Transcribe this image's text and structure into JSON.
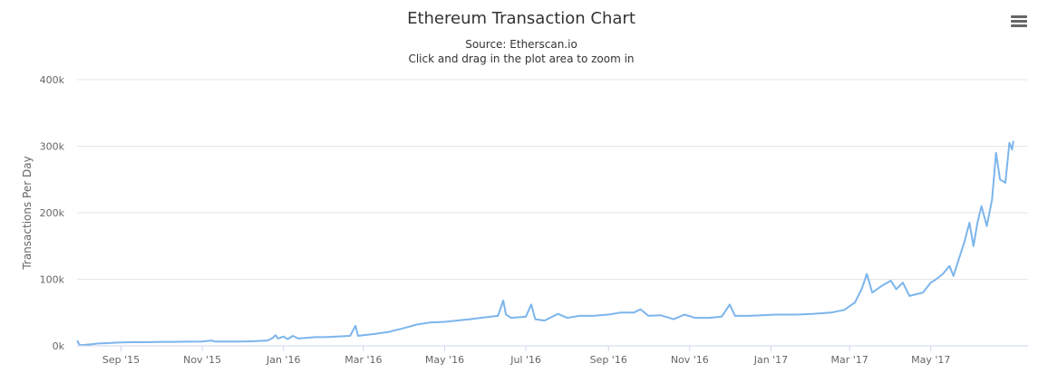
{
  "chart_data": {
    "type": "line",
    "title": "Ethereum Transaction Chart",
    "subtitle": "Source: Etherscan.io",
    "subtitle2": "Click and drag in the plot area to zoom in",
    "xlabel": "",
    "ylabel": "Transactions Per Day",
    "x_ticks": [
      "Sep '15",
      "Nov '15",
      "Jan '16",
      "Mar '16",
      "May '16",
      "Jul '16",
      "Sep '16",
      "Nov '16",
      "Jan '17",
      "Mar '17",
      "May '17"
    ],
    "y_ticks": [
      "0k",
      "100k",
      "200k",
      "300k",
      "400k"
    ],
    "xlim": [
      "2015-07-30",
      "2017-07-13"
    ],
    "ylim": [
      0,
      400000
    ],
    "grid": true,
    "legend": "none",
    "series": [
      {
        "color": "#7cb5ec",
        "points": [
          [
            "2015-07-30",
            8000
          ],
          [
            "2015-08-01",
            1000
          ],
          [
            "2015-08-05",
            1500
          ],
          [
            "2015-08-10",
            2500
          ],
          [
            "2015-08-15",
            3500
          ],
          [
            "2015-08-20",
            4000
          ],
          [
            "2015-08-25",
            4500
          ],
          [
            "2015-09-01",
            5000
          ],
          [
            "2015-09-10",
            5500
          ],
          [
            "2015-09-20",
            5500
          ],
          [
            "2015-10-01",
            6000
          ],
          [
            "2015-10-10",
            6000
          ],
          [
            "2015-10-20",
            6200
          ],
          [
            "2015-11-01",
            6500
          ],
          [
            "2015-11-08",
            8000
          ],
          [
            "2015-11-10",
            6500
          ],
          [
            "2015-11-20",
            6500
          ],
          [
            "2015-12-01",
            6500
          ],
          [
            "2015-12-10",
            7000
          ],
          [
            "2015-12-20",
            8000
          ],
          [
            "2015-12-24",
            12000
          ],
          [
            "2015-12-26",
            16000
          ],
          [
            "2015-12-28",
            11000
          ],
          [
            "2016-01-01",
            14000
          ],
          [
            "2016-01-04",
            10000
          ],
          [
            "2016-01-08",
            15000
          ],
          [
            "2016-01-12",
            11000
          ],
          [
            "2016-01-18",
            12000
          ],
          [
            "2016-01-25",
            13000
          ],
          [
            "2016-02-01",
            13000
          ],
          [
            "2016-02-10",
            14000
          ],
          [
            "2016-02-20",
            15000
          ],
          [
            "2016-02-24",
            30000
          ],
          [
            "2016-02-26",
            15000
          ],
          [
            "2016-03-01",
            16000
          ],
          [
            "2016-03-10",
            18000
          ],
          [
            "2016-03-20",
            21000
          ],
          [
            "2016-04-01",
            27000
          ],
          [
            "2016-04-10",
            32000
          ],
          [
            "2016-04-20",
            35000
          ],
          [
            "2016-05-01",
            36000
          ],
          [
            "2016-05-10",
            38000
          ],
          [
            "2016-05-20",
            40000
          ],
          [
            "2016-06-01",
            43000
          ],
          [
            "2016-06-10",
            45000
          ],
          [
            "2016-06-14",
            68000
          ],
          [
            "2016-06-16",
            47000
          ],
          [
            "2016-06-20",
            42000
          ],
          [
            "2016-07-01",
            44000
          ],
          [
            "2016-07-05",
            62000
          ],
          [
            "2016-07-08",
            40000
          ],
          [
            "2016-07-15",
            38000
          ],
          [
            "2016-07-25",
            48000
          ],
          [
            "2016-08-01",
            42000
          ],
          [
            "2016-08-10",
            45000
          ],
          [
            "2016-08-20",
            45000
          ],
          [
            "2016-09-01",
            47000
          ],
          [
            "2016-09-10",
            50000
          ],
          [
            "2016-09-20",
            50000
          ],
          [
            "2016-09-25",
            55000
          ],
          [
            "2016-10-01",
            45000
          ],
          [
            "2016-10-10",
            46000
          ],
          [
            "2016-10-20",
            40000
          ],
          [
            "2016-10-28",
            47000
          ],
          [
            "2016-11-05",
            42000
          ],
          [
            "2016-11-15",
            42000
          ],
          [
            "2016-11-25",
            44000
          ],
          [
            "2016-12-01",
            62000
          ],
          [
            "2016-12-05",
            45000
          ],
          [
            "2016-12-15",
            45000
          ],
          [
            "2016-12-25",
            46000
          ],
          [
            "2017-01-05",
            47000
          ],
          [
            "2017-01-20",
            47000
          ],
          [
            "2017-02-01",
            48000
          ],
          [
            "2017-02-15",
            50000
          ],
          [
            "2017-02-25",
            54000
          ],
          [
            "2017-03-05",
            65000
          ],
          [
            "2017-03-10",
            85000
          ],
          [
            "2017-03-14",
            108000
          ],
          [
            "2017-03-18",
            80000
          ],
          [
            "2017-03-25",
            90000
          ],
          [
            "2017-04-01",
            98000
          ],
          [
            "2017-04-05",
            85000
          ],
          [
            "2017-04-10",
            95000
          ],
          [
            "2017-04-15",
            75000
          ],
          [
            "2017-04-25",
            80000
          ],
          [
            "2017-05-01",
            95000
          ],
          [
            "2017-05-05",
            100000
          ],
          [
            "2017-05-10",
            108000
          ],
          [
            "2017-05-15",
            120000
          ],
          [
            "2017-05-18",
            105000
          ],
          [
            "2017-05-22",
            130000
          ],
          [
            "2017-05-26",
            155000
          ],
          [
            "2017-05-30",
            185000
          ],
          [
            "2017-06-02",
            150000
          ],
          [
            "2017-06-05",
            185000
          ],
          [
            "2017-06-08",
            210000
          ],
          [
            "2017-06-12",
            180000
          ],
          [
            "2017-06-16",
            220000
          ],
          [
            "2017-06-19",
            290000
          ],
          [
            "2017-06-22",
            250000
          ],
          [
            "2017-06-26",
            245000
          ],
          [
            "2017-06-29",
            305000
          ],
          [
            "2017-07-01",
            295000
          ],
          [
            "2017-07-02",
            308000
          ]
        ]
      }
    ]
  },
  "ui": {
    "menu_icon": "hamburger-menu-icon"
  }
}
